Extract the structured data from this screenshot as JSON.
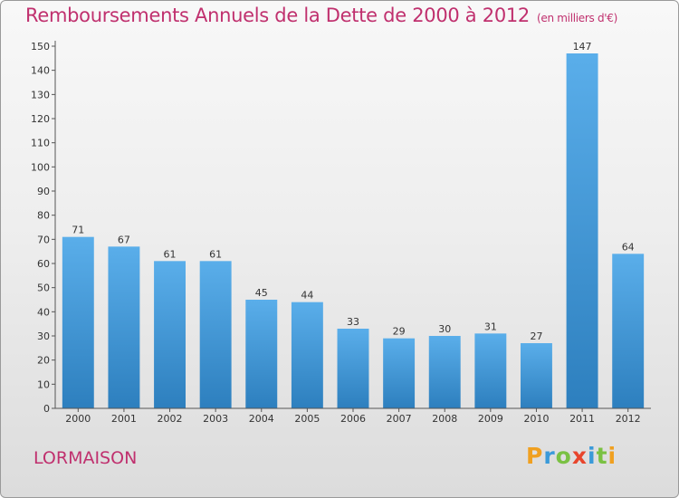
{
  "header": {
    "title": "Remboursements Annuels de la Dette de 2000 à 2012",
    "unit": "(en milliers d'€)"
  },
  "footer": {
    "city": "LORMAISON",
    "logo": "Proxiti"
  },
  "colors": {
    "title": "#c0306e",
    "bar_top": "#5aaeea",
    "bar_bottom": "#2d7fbe",
    "logo": [
      "#f0a020",
      "#3a9ad9",
      "#7ac143",
      "#e8452c",
      "#3a9ad9",
      "#7ac143",
      "#f0a020"
    ]
  },
  "chart_data": {
    "type": "bar",
    "title": "Remboursements Annuels de la Dette de 2000 à 2012",
    "categories": [
      "2000",
      "2001",
      "2002",
      "2003",
      "2004",
      "2005",
      "2006",
      "2007",
      "2008",
      "2009",
      "2010",
      "2011",
      "2012"
    ],
    "values": [
      71,
      67,
      61,
      61,
      45,
      44,
      33,
      29,
      30,
      31,
      27,
      147,
      64
    ],
    "ylim": [
      0,
      150
    ],
    "yticks": [
      0,
      10,
      20,
      30,
      40,
      50,
      60,
      70,
      80,
      90,
      100,
      110,
      120,
      130,
      140,
      150
    ],
    "xlabel": "",
    "ylabel": "",
    "grid": false,
    "data_labels": true
  }
}
